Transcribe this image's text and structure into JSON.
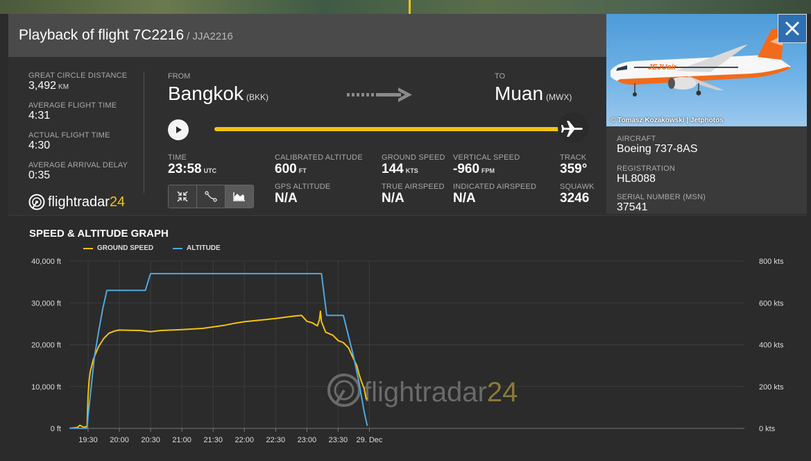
{
  "header": {
    "title": "Playback of flight 7C2216",
    "subtitle": "/ JJA2216"
  },
  "photo": {
    "credit": "© Tomasz Kozakowski | Jetphotos",
    "airline_livery": "JEJUair"
  },
  "close_icon": "close-icon",
  "stats": {
    "great_circle_distance": {
      "label": "GREAT CIRCLE DISTANCE",
      "value": "3,492",
      "unit": "KM"
    },
    "average_flight_time": {
      "label": "AVERAGE FLIGHT TIME",
      "value": "4:31"
    },
    "actual_flight_time": {
      "label": "ACTUAL FLIGHT TIME",
      "value": "4:30"
    },
    "average_arrival_delay": {
      "label": "AVERAGE ARRIVAL DELAY",
      "value": "0:35"
    }
  },
  "logo": {
    "text_main": "flightradar",
    "text_24": "24"
  },
  "route": {
    "from_label": "FROM",
    "from_city": "Bangkok",
    "from_code": "(BKK)",
    "to_label": "TO",
    "to_city": "Muan",
    "to_code": "(MWX)"
  },
  "playback": {
    "progress": 1.0
  },
  "metrics": {
    "time": {
      "label": "TIME",
      "value": "23:58",
      "unit": "UTC"
    },
    "calibrated_altitude": {
      "label": "CALIBRATED ALTITUDE",
      "value": "600",
      "unit": "FT"
    },
    "gps_altitude": {
      "label": "GPS ALTITUDE",
      "value": "N/A"
    },
    "ground_speed": {
      "label": "GROUND SPEED",
      "value": "144",
      "unit": "KTS"
    },
    "true_airspeed": {
      "label": "TRUE AIRSPEED",
      "value": "N/A"
    },
    "vertical_speed": {
      "label": "VERTICAL SPEED",
      "value": "-960",
      "unit": "FPM"
    },
    "indicated_airspeed": {
      "label": "INDICATED AIRSPEED",
      "value": "N/A"
    },
    "track": {
      "label": "TRACK",
      "value": "359°"
    },
    "squawk": {
      "label": "SQUAWK",
      "value": "3246"
    }
  },
  "aircraft": {
    "aircraft": {
      "label": "AIRCRAFT",
      "value": "Boeing 737-8AS"
    },
    "registration": {
      "label": "REGISTRATION",
      "value": "HL8088"
    },
    "serial": {
      "label": "SERIAL NUMBER (MSN)",
      "value": "37541"
    }
  },
  "colors": {
    "ground_speed": "#f4c30f",
    "altitude": "#4fa8e0",
    "accent_yellow": "#f4c30f",
    "close_bg": "#2d6fb5"
  },
  "graph": {
    "title": "SPEED & ALTITUDE GRAPH",
    "watermark_main": "flightradar",
    "watermark_24": "24"
  },
  "chart_data": {
    "type": "line",
    "title": "SPEED & ALTITUDE GRAPH",
    "x_ticks": [
      "19:30",
      "20:00",
      "20:30",
      "21:00",
      "21:30",
      "22:00",
      "22:30",
      "23:00",
      "23:30",
      "29. Dec"
    ],
    "x_range": [
      "19:12",
      "30:00"
    ],
    "left_axis": {
      "ticks": [
        "0 ft",
        "10,000 ft",
        "20,000 ft",
        "30,000 ft",
        "40,000 ft"
      ],
      "range": [
        0,
        40000
      ]
    },
    "right_axis": {
      "ticks": [
        "0 kts",
        "200 kts",
        "400 kts",
        "600 kts",
        "800 kts"
      ],
      "range": [
        0,
        800
      ]
    },
    "grid": true,
    "legend_position": "top-left",
    "series": [
      {
        "name": "GROUND SPEED",
        "axis": "right",
        "points": [
          [
            "19:12",
            0
          ],
          [
            "19:20",
            5
          ],
          [
            "19:22",
            15
          ],
          [
            "19:26",
            5
          ],
          [
            "19:29",
            10
          ],
          [
            "19:30",
            160
          ],
          [
            "19:31",
            230
          ],
          [
            "19:32",
            270
          ],
          [
            "19:35",
            330
          ],
          [
            "19:40",
            390
          ],
          [
            "19:45",
            430
          ],
          [
            "19:50",
            455
          ],
          [
            "19:55",
            465
          ],
          [
            "20:00",
            470
          ],
          [
            "20:10",
            469
          ],
          [
            "20:20",
            468
          ],
          [
            "20:30",
            462
          ],
          [
            "20:40",
            468
          ],
          [
            "20:50",
            470
          ],
          [
            "21:00",
            472
          ],
          [
            "21:10",
            475
          ],
          [
            "21:20",
            478
          ],
          [
            "21:30",
            485
          ],
          [
            "21:40",
            492
          ],
          [
            "21:50",
            502
          ],
          [
            "22:00",
            510
          ],
          [
            "22:10",
            515
          ],
          [
            "22:20",
            520
          ],
          [
            "22:30",
            525
          ],
          [
            "22:40",
            532
          ],
          [
            "22:50",
            538
          ],
          [
            "22:55",
            540
          ],
          [
            "23:00",
            512
          ],
          [
            "23:05",
            505
          ],
          [
            "23:10",
            490
          ],
          [
            "23:12",
            520
          ],
          [
            "23:13",
            560
          ],
          [
            "23:14",
            510
          ],
          [
            "23:18",
            460
          ],
          [
            "23:25",
            445
          ],
          [
            "23:30",
            420
          ],
          [
            "23:35",
            410
          ],
          [
            "23:40",
            385
          ],
          [
            "23:45",
            330
          ],
          [
            "23:48",
            300
          ],
          [
            "23:50",
            260
          ],
          [
            "23:52",
            230
          ],
          [
            "23:55",
            190
          ],
          [
            "23:57",
            140
          ],
          [
            "23:58",
            144
          ]
        ]
      },
      {
        "name": "ALTITUDE",
        "axis": "left",
        "points": [
          [
            "19:12",
            0
          ],
          [
            "19:29",
            0
          ],
          [
            "19:30",
            3000
          ],
          [
            "19:33",
            10000
          ],
          [
            "19:36",
            17000
          ],
          [
            "19:40",
            23000
          ],
          [
            "19:44",
            28500
          ],
          [
            "19:48",
            33000
          ],
          [
            "20:00",
            33000
          ],
          [
            "20:25",
            33000
          ],
          [
            "20:28",
            35500
          ],
          [
            "20:30",
            37000
          ],
          [
            "21:00",
            37000
          ],
          [
            "22:00",
            37000
          ],
          [
            "23:00",
            37000
          ],
          [
            "23:14",
            37000
          ],
          [
            "23:16",
            33000
          ],
          [
            "23:19",
            27000
          ],
          [
            "23:35",
            27000
          ],
          [
            "23:40",
            22000
          ],
          [
            "23:45",
            17000
          ],
          [
            "23:50",
            11000
          ],
          [
            "23:55",
            4000
          ],
          [
            "23:58",
            600
          ]
        ]
      }
    ]
  }
}
